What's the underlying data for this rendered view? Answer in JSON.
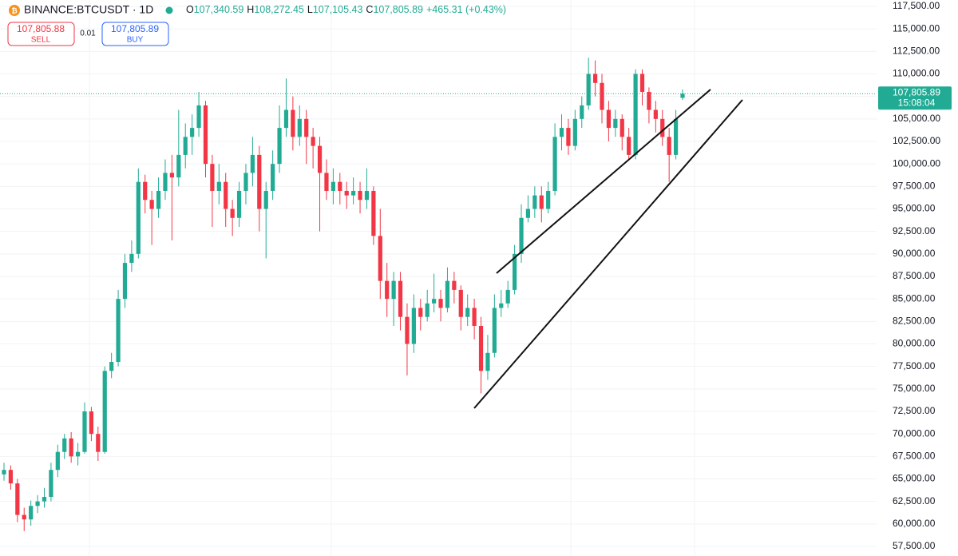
{
  "chart_data": {
    "type": "candlestick",
    "symbol": "BINANCE:BTCUSDT · 1D",
    "ohlc_header": [
      {
        "key": "O",
        "value": "107,340.59"
      },
      {
        "key": "H",
        "value": "108,272.45"
      },
      {
        "key": "L",
        "value": "107,105.43"
      },
      {
        "key": "C",
        "value": "107,805.89"
      }
    ],
    "change": "+465.31 (+0.43%)",
    "sell": {
      "price": "107,805.88",
      "label": "SELL"
    },
    "spread": "0.01",
    "buy": {
      "price": "107,805.89",
      "label": "BUY"
    },
    "last_price": {
      "value": 107805.89,
      "label": "107,805.89",
      "countdown": "15:08:04"
    },
    "up_color": "#22ab94",
    "down_color": "#f23645",
    "ylim": [
      57500,
      117500
    ],
    "yticks": [
      {
        "value": 57500,
        "label": "57,500.00"
      },
      {
        "value": 60000,
        "label": "60,000.00"
      },
      {
        "value": 62500,
        "label": "62,500.00"
      },
      {
        "value": 65000,
        "label": "65,000.00"
      },
      {
        "value": 67500,
        "label": "67,500.00"
      },
      {
        "value": 70000,
        "label": "70,000.00"
      },
      {
        "value": 72500,
        "label": "72,500.00"
      },
      {
        "value": 75000,
        "label": "75,000.00"
      },
      {
        "value": 77500,
        "label": "77,500.00"
      },
      {
        "value": 80000,
        "label": "80,000.00"
      },
      {
        "value": 82500,
        "label": "82,500.00"
      },
      {
        "value": 85000,
        "label": "85,000.00"
      },
      {
        "value": 87500,
        "label": "87,500.00"
      },
      {
        "value": 90000,
        "label": "90,000.00"
      },
      {
        "value": 92500,
        "label": "92,500.00"
      },
      {
        "value": 95000,
        "label": "95,000.00"
      },
      {
        "value": 97500,
        "label": "97,500.00"
      },
      {
        "value": 100000,
        "label": "100,000.00"
      },
      {
        "value": 102500,
        "label": "102,500.00"
      },
      {
        "value": 105000,
        "label": "105,000.00"
      },
      {
        "value": 107500,
        "label": "107,500.00"
      },
      {
        "value": 110000,
        "label": "110,000.00"
      },
      {
        "value": 112500,
        "label": "112,500.00"
      },
      {
        "value": 115000,
        "label": "115,000.00"
      },
      {
        "value": 117500,
        "label": "117,500.00"
      }
    ],
    "grid": true,
    "candles": [
      [
        65500,
        66800,
        64800,
        66000
      ],
      [
        66000,
        66500,
        63800,
        64500
      ],
      [
        64500,
        65000,
        60200,
        61000
      ],
      [
        61000,
        61800,
        59200,
        60500
      ],
      [
        60500,
        62600,
        59800,
        62000
      ],
      [
        62000,
        63200,
        61200,
        62500
      ],
      [
        62500,
        64000,
        61800,
        63000
      ],
      [
        63000,
        66800,
        62500,
        66000
      ],
      [
        66000,
        68800,
        65200,
        68000
      ],
      [
        68000,
        70000,
        67200,
        69500
      ],
      [
        69500,
        70200,
        66800,
        67500
      ],
      [
        67500,
        69000,
        66500,
        68000
      ],
      [
        68000,
        73500,
        67800,
        72500
      ],
      [
        72500,
        73000,
        69200,
        70000
      ],
      [
        70000,
        70800,
        67000,
        68000
      ],
      [
        68000,
        77500,
        67800,
        77000
      ],
      [
        77000,
        79000,
        76200,
        78000
      ],
      [
        78000,
        86000,
        77500,
        85000
      ],
      [
        85000,
        90000,
        84000,
        89000
      ],
      [
        89000,
        91500,
        88000,
        90000
      ],
      [
        90000,
        99500,
        89500,
        98000
      ],
      [
        98000,
        98800,
        94500,
        96000
      ],
      [
        96000,
        97000,
        91000,
        95000
      ],
      [
        95000,
        98500,
        94000,
        97000
      ],
      [
        97000,
        100500,
        96000,
        99000
      ],
      [
        99000,
        101000,
        91500,
        98500
      ],
      [
        98500,
        106000,
        97500,
        101000
      ],
      [
        101000,
        104500,
        99500,
        103000
      ],
      [
        103000,
        105500,
        101000,
        104000
      ],
      [
        104000,
        108000,
        103000,
        106500
      ],
      [
        106500,
        107000,
        98500,
        100000
      ],
      [
        100000,
        101000,
        93000,
        97000
      ],
      [
        97000,
        100000,
        95500,
        98000
      ],
      [
        98000,
        99000,
        93000,
        95000
      ],
      [
        95000,
        96000,
        92000,
        94000
      ],
      [
        94000,
        98000,
        93000,
        97000
      ],
      [
        97000,
        100000,
        95500,
        99000
      ],
      [
        99000,
        103000,
        97500,
        101000
      ],
      [
        101000,
        102000,
        92500,
        95000
      ],
      [
        95000,
        98000,
        89500,
        97000
      ],
      [
        97000,
        101500,
        96000,
        100000
      ],
      [
        100000,
        106500,
        99000,
        104000
      ],
      [
        104000,
        109500,
        103000,
        106000
      ],
      [
        106000,
        107500,
        101500,
        103000
      ],
      [
        103000,
        106500,
        102000,
        105000
      ],
      [
        105000,
        106000,
        100000,
        103000
      ],
      [
        103000,
        104000,
        99500,
        102000
      ],
      [
        102000,
        103000,
        92500,
        99000
      ],
      [
        99000,
        100500,
        96000,
        97000
      ],
      [
        97000,
        99500,
        95500,
        98000
      ],
      [
        98000,
        99000,
        95500,
        97000
      ],
      [
        97000,
        98000,
        95000,
        96500
      ],
      [
        96500,
        98500,
        95500,
        97000
      ],
      [
        97000,
        98000,
        94500,
        96000
      ],
      [
        96000,
        99500,
        95000,
        97000
      ],
      [
        97000,
        97500,
        91000,
        92000
      ],
      [
        92000,
        95000,
        85000,
        87000
      ],
      [
        87000,
        89000,
        83000,
        85000
      ],
      [
        85000,
        88000,
        82000,
        87000
      ],
      [
        87000,
        88000,
        81500,
        83000
      ],
      [
        83000,
        84500,
        76500,
        80000
      ],
      [
        80000,
        85500,
        79000,
        84000
      ],
      [
        84000,
        85000,
        81500,
        83000
      ],
      [
        83000,
        86000,
        82500,
        84500
      ],
      [
        84500,
        87800,
        83500,
        85000
      ],
      [
        85000,
        86000,
        82500,
        84000
      ],
      [
        84000,
        88500,
        83500,
        87000
      ],
      [
        87000,
        88000,
        84500,
        86000
      ],
      [
        86000,
        86500,
        81500,
        83000
      ],
      [
        83000,
        85500,
        82000,
        84000
      ],
      [
        84000,
        85000,
        80500,
        82000
      ],
      [
        82000,
        83000,
        74500,
        77000
      ],
      [
        77000,
        81000,
        76000,
        79000
      ],
      [
        79000,
        85500,
        78500,
        84000
      ],
      [
        84000,
        86000,
        83000,
        84500
      ],
      [
        84500,
        87000,
        84000,
        86000
      ],
      [
        86000,
        91000,
        85500,
        90000
      ],
      [
        90000,
        95500,
        89000,
        94000
      ],
      [
        94000,
        96500,
        93500,
        95000
      ],
      [
        95000,
        97500,
        94000,
        96500
      ],
      [
        96500,
        97500,
        93500,
        95000
      ],
      [
        95000,
        98000,
        94500,
        97000
      ],
      [
        97000,
        104500,
        96500,
        103000
      ],
      [
        103000,
        105500,
        101500,
        104000
      ],
      [
        104000,
        105000,
        101000,
        102000
      ],
      [
        102000,
        106000,
        101500,
        105000
      ],
      [
        105000,
        107500,
        104000,
        106500
      ],
      [
        106500,
        111800,
        106000,
        110000
      ],
      [
        110000,
        111500,
        107500,
        109000
      ],
      [
        109000,
        110000,
        104500,
        106000
      ],
      [
        106000,
        107000,
        102500,
        104000
      ],
      [
        104000,
        106000,
        103000,
        105000
      ],
      [
        105000,
        105500,
        101500,
        103000
      ],
      [
        103000,
        104000,
        100500,
        101000
      ],
      [
        101000,
        110500,
        100500,
        110000
      ],
      [
        110000,
        110500,
        106500,
        108000
      ],
      [
        108000,
        108500,
        104500,
        106000
      ],
      [
        106000,
        107000,
        103500,
        105000
      ],
      [
        105000,
        106000,
        102000,
        103000
      ],
      [
        103000,
        104000,
        98000,
        101000
      ],
      [
        101000,
        106000,
        100500,
        105000
      ],
      [
        107340.59,
        108272.45,
        107105.43,
        107805.89
      ]
    ]
  }
}
